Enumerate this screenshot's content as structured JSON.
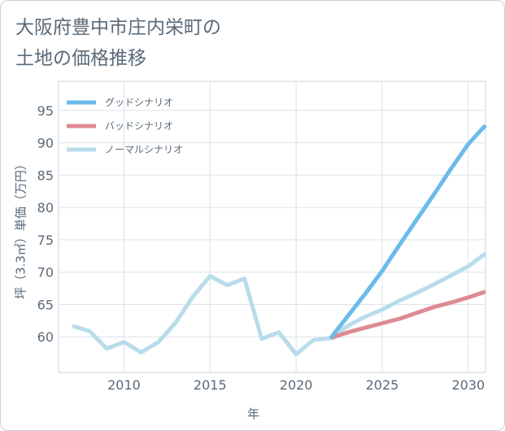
{
  "chart_data": {
    "type": "line",
    "title_line1": "大阪府豊中市庄内栄町の",
    "title_line2": "土地の価格推移",
    "xlabel": "年",
    "ylabel": "坪（3.3㎡）単価（万円）",
    "xlim": [
      2006.2,
      2031
    ],
    "ylim": [
      54.5,
      99.5
    ],
    "xticks": [
      2010,
      2015,
      2020,
      2025,
      2030
    ],
    "yticks": [
      60,
      65,
      70,
      75,
      80,
      85,
      90,
      95
    ],
    "legend": "top-left",
    "series": [
      {
        "name": "グッドシナリオ",
        "color": "#6bbbea",
        "x": [
          2022,
          2023,
          2024,
          2025,
          2026,
          2027,
          2028,
          2029,
          2030,
          2031
        ],
        "y": [
          59.8,
          63.2,
          66.6,
          70.2,
          74.2,
          78.1,
          82.0,
          86.0,
          89.8,
          92.7
        ]
      },
      {
        "name": "バッドシナリオ",
        "color": "#de8a92",
        "x": [
          2022,
          2023,
          2024,
          2025,
          2026,
          2027,
          2028,
          2029,
          2030,
          2031
        ],
        "y": [
          59.8,
          60.7,
          61.4,
          62.1,
          62.8,
          63.7,
          64.6,
          65.3,
          66.1,
          67.0
        ]
      },
      {
        "name": "ノーマルシナリオ",
        "color": "#b9dcea",
        "x": [
          2007,
          2008,
          2009,
          2010,
          2011,
          2012,
          2013,
          2014,
          2015,
          2016,
          2017,
          2018,
          2019,
          2020,
          2021,
          2022,
          2023,
          2024,
          2025,
          2026,
          2027,
          2028,
          2029,
          2030,
          2031
        ],
        "y": [
          61.7,
          60.9,
          58.2,
          59.2,
          57.6,
          59.2,
          62.2,
          66.2,
          69.4,
          68.0,
          69.0,
          59.7,
          60.7,
          57.3,
          59.5,
          59.8,
          61.7,
          63.1,
          64.2,
          65.6,
          66.8,
          68.1,
          69.5,
          70.9,
          72.9
        ]
      }
    ]
  }
}
